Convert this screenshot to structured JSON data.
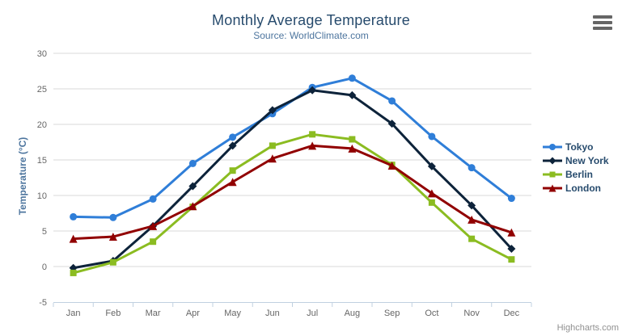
{
  "credits": "Highcharts.com",
  "export_icon": "hamburger-icon",
  "palette": {
    "title_color": "#274b6d",
    "subtitle_color": "#4d759e",
    "axis_label_color": "#666666",
    "axis_title_color": "#4d759e",
    "grid_color": "#d8d8d8",
    "axis_line_color": "#c0d0e0",
    "legend_text_color": "#274b6d",
    "credits_color": "#909090"
  },
  "chart_data": {
    "type": "line",
    "title": "Monthly Average Temperature",
    "subtitle": "Source: WorldClimate.com",
    "categories": [
      "Jan",
      "Feb",
      "Mar",
      "Apr",
      "May",
      "Jun",
      "Jul",
      "Aug",
      "Sep",
      "Oct",
      "Nov",
      "Dec"
    ],
    "series": [
      {
        "name": "Tokyo",
        "color": "#2f7ed8",
        "marker": "circle",
        "values": [
          7.0,
          6.9,
          9.5,
          14.5,
          18.2,
          21.5,
          25.2,
          26.5,
          23.3,
          18.3,
          13.9,
          9.6
        ]
      },
      {
        "name": "New York",
        "color": "#0d233a",
        "marker": "diamond",
        "values": [
          -0.2,
          0.8,
          5.7,
          11.3,
          17.0,
          22.0,
          24.8,
          24.1,
          20.1,
          14.1,
          8.6,
          2.5
        ]
      },
      {
        "name": "Berlin",
        "color": "#8bbc21",
        "marker": "square",
        "values": [
          -0.9,
          0.6,
          3.5,
          8.4,
          13.5,
          17.0,
          18.6,
          17.9,
          14.3,
          9.0,
          3.9,
          1.0
        ]
      },
      {
        "name": "London",
        "color": "#910000",
        "marker": "triangle",
        "values": [
          3.9,
          4.2,
          5.7,
          8.5,
          11.9,
          15.2,
          17.0,
          16.6,
          14.2,
          10.3,
          6.6,
          4.8
        ]
      }
    ],
    "xlabel": "",
    "ylabel": "Temperature (°C)",
    "ylim": [
      -5,
      30
    ],
    "ytick_step": 5,
    "grid": true,
    "legend_position": "right"
  }
}
